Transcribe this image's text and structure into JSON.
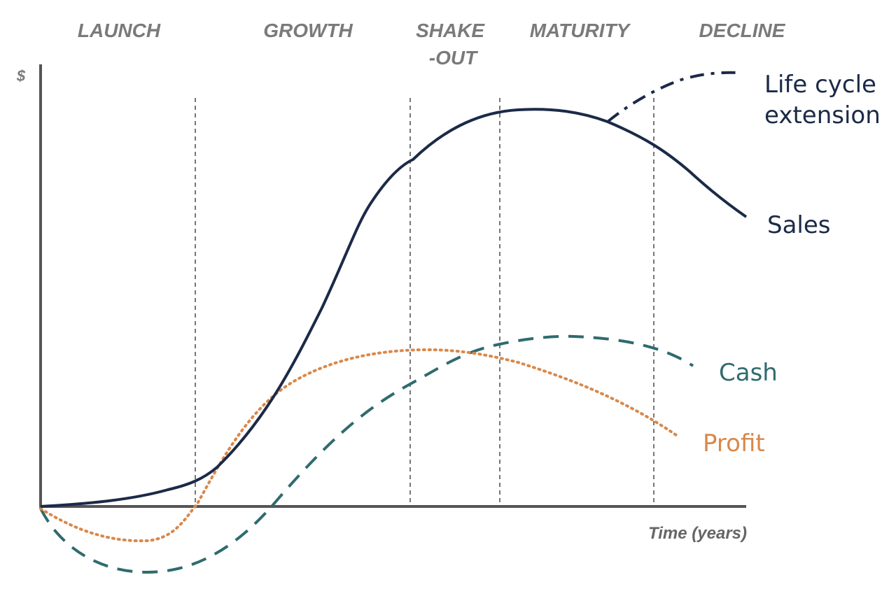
{
  "stages": [
    {
      "lines": [
        "LAUNCH"
      ]
    },
    {
      "lines": [
        "GROWTH"
      ]
    },
    {
      "lines": [
        "SHAKE",
        "-OUT"
      ]
    },
    {
      "lines": [
        "MATURITY"
      ]
    },
    {
      "lines": [
        "DECLINE"
      ]
    }
  ],
  "axes": {
    "y_label": "$",
    "x_label": "Time (years)"
  },
  "curves": {
    "sales": {
      "label": "Sales",
      "color": "#1b2a47",
      "style": "solid"
    },
    "extension": {
      "label_lines": [
        "Life cycle",
        "extension"
      ],
      "color": "#1b2a47",
      "style": "dash-dot"
    },
    "cash": {
      "label": "Cash",
      "color": "#2e6b6e",
      "style": "dashed"
    },
    "profit": {
      "label": "Profit",
      "color": "#d9884a",
      "style": "dotted"
    }
  }
}
